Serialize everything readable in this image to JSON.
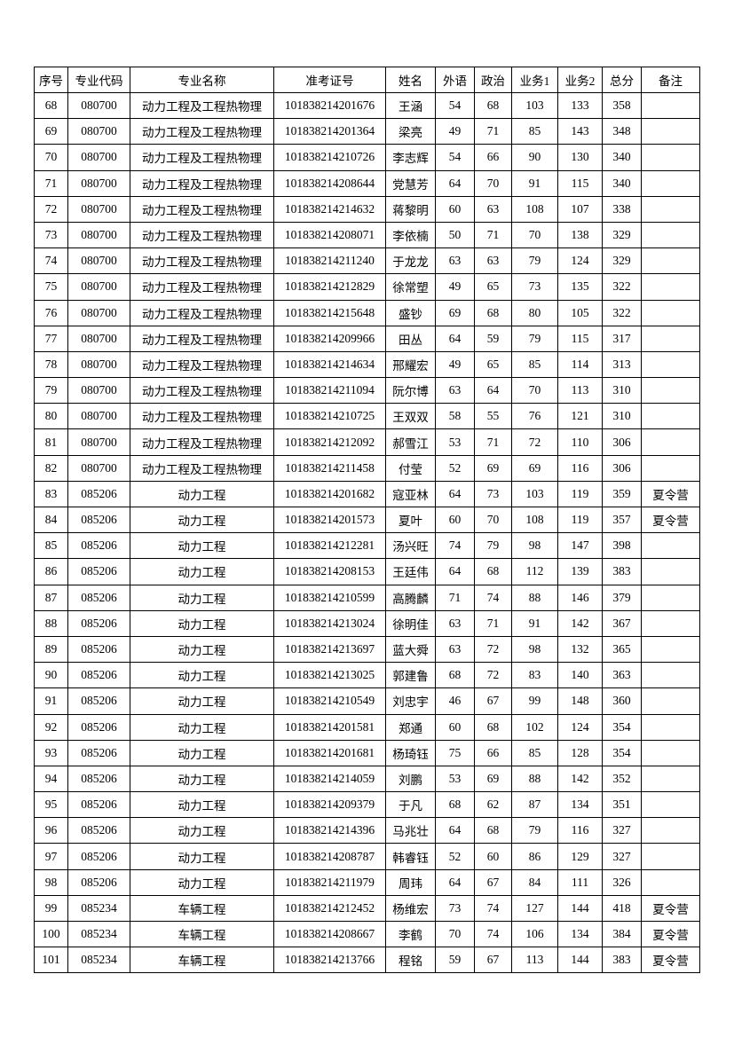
{
  "headers": [
    "序号",
    "专业代码",
    "专业名称",
    "准考证号",
    "姓名",
    "外语",
    "政治",
    "业务1",
    "业务2",
    "总分",
    "备注"
  ],
  "rows": [
    [
      "68",
      "080700",
      "动力工程及工程热物理",
      "101838214201676",
      "王涵",
      "54",
      "68",
      "103",
      "133",
      "358",
      ""
    ],
    [
      "69",
      "080700",
      "动力工程及工程热物理",
      "101838214201364",
      "梁亮",
      "49",
      "71",
      "85",
      "143",
      "348",
      ""
    ],
    [
      "70",
      "080700",
      "动力工程及工程热物理",
      "101838214210726",
      "李志辉",
      "54",
      "66",
      "90",
      "130",
      "340",
      ""
    ],
    [
      "71",
      "080700",
      "动力工程及工程热物理",
      "101838214208644",
      "党慧芳",
      "64",
      "70",
      "91",
      "115",
      "340",
      ""
    ],
    [
      "72",
      "080700",
      "动力工程及工程热物理",
      "101838214214632",
      "蒋黎明",
      "60",
      "63",
      "108",
      "107",
      "338",
      ""
    ],
    [
      "73",
      "080700",
      "动力工程及工程热物理",
      "101838214208071",
      "李依楠",
      "50",
      "71",
      "70",
      "138",
      "329",
      ""
    ],
    [
      "74",
      "080700",
      "动力工程及工程热物理",
      "101838214211240",
      "于龙龙",
      "63",
      "63",
      "79",
      "124",
      "329",
      ""
    ],
    [
      "75",
      "080700",
      "动力工程及工程热物理",
      "101838214212829",
      "徐常塑",
      "49",
      "65",
      "73",
      "135",
      "322",
      ""
    ],
    [
      "76",
      "080700",
      "动力工程及工程热物理",
      "101838214215648",
      "盛钞",
      "69",
      "68",
      "80",
      "105",
      "322",
      ""
    ],
    [
      "77",
      "080700",
      "动力工程及工程热物理",
      "101838214209966",
      "田丛",
      "64",
      "59",
      "79",
      "115",
      "317",
      ""
    ],
    [
      "78",
      "080700",
      "动力工程及工程热物理",
      "101838214214634",
      "邢耀宏",
      "49",
      "65",
      "85",
      "114",
      "313",
      ""
    ],
    [
      "79",
      "080700",
      "动力工程及工程热物理",
      "101838214211094",
      "阮尔博",
      "63",
      "64",
      "70",
      "113",
      "310",
      ""
    ],
    [
      "80",
      "080700",
      "动力工程及工程热物理",
      "101838214210725",
      "王双双",
      "58",
      "55",
      "76",
      "121",
      "310",
      ""
    ],
    [
      "81",
      "080700",
      "动力工程及工程热物理",
      "101838214212092",
      "郝雪江",
      "53",
      "71",
      "72",
      "110",
      "306",
      ""
    ],
    [
      "82",
      "080700",
      "动力工程及工程热物理",
      "101838214211458",
      "付莹",
      "52",
      "69",
      "69",
      "116",
      "306",
      ""
    ],
    [
      "83",
      "085206",
      "动力工程",
      "101838214201682",
      "寇亚林",
      "64",
      "73",
      "103",
      "119",
      "359",
      "夏令营"
    ],
    [
      "84",
      "085206",
      "动力工程",
      "101838214201573",
      "夏叶",
      "60",
      "70",
      "108",
      "119",
      "357",
      "夏令营"
    ],
    [
      "85",
      "085206",
      "动力工程",
      "101838214212281",
      "汤兴旺",
      "74",
      "79",
      "98",
      "147",
      "398",
      ""
    ],
    [
      "86",
      "085206",
      "动力工程",
      "101838214208153",
      "王廷伟",
      "64",
      "68",
      "112",
      "139",
      "383",
      ""
    ],
    [
      "87",
      "085206",
      "动力工程",
      "101838214210599",
      "高腾麟",
      "71",
      "74",
      "88",
      "146",
      "379",
      ""
    ],
    [
      "88",
      "085206",
      "动力工程",
      "101838214213024",
      "徐明佳",
      "63",
      "71",
      "91",
      "142",
      "367",
      ""
    ],
    [
      "89",
      "085206",
      "动力工程",
      "101838214213697",
      "蓝大舜",
      "63",
      "72",
      "98",
      "132",
      "365",
      ""
    ],
    [
      "90",
      "085206",
      "动力工程",
      "101838214213025",
      "郭建鲁",
      "68",
      "72",
      "83",
      "140",
      "363",
      ""
    ],
    [
      "91",
      "085206",
      "动力工程",
      "101838214210549",
      "刘忠宇",
      "46",
      "67",
      "99",
      "148",
      "360",
      ""
    ],
    [
      "92",
      "085206",
      "动力工程",
      "101838214201581",
      "郑通",
      "60",
      "68",
      "102",
      "124",
      "354",
      ""
    ],
    [
      "93",
      "085206",
      "动力工程",
      "101838214201681",
      "杨琦钰",
      "75",
      "66",
      "85",
      "128",
      "354",
      ""
    ],
    [
      "94",
      "085206",
      "动力工程",
      "101838214214059",
      "刘鹏",
      "53",
      "69",
      "88",
      "142",
      "352",
      ""
    ],
    [
      "95",
      "085206",
      "动力工程",
      "101838214209379",
      "于凡",
      "68",
      "62",
      "87",
      "134",
      "351",
      ""
    ],
    [
      "96",
      "085206",
      "动力工程",
      "101838214214396",
      "马兆壮",
      "64",
      "68",
      "79",
      "116",
      "327",
      ""
    ],
    [
      "97",
      "085206",
      "动力工程",
      "101838214208787",
      "韩睿钰",
      "52",
      "60",
      "86",
      "129",
      "327",
      ""
    ],
    [
      "98",
      "085206",
      "动力工程",
      "101838214211979",
      "周玮",
      "64",
      "67",
      "84",
      "111",
      "326",
      ""
    ],
    [
      "99",
      "085234",
      "车辆工程",
      "101838214212452",
      "杨维宏",
      "73",
      "74",
      "127",
      "144",
      "418",
      "夏令营"
    ],
    [
      "100",
      "085234",
      "车辆工程",
      "101838214208667",
      "李鹤",
      "70",
      "74",
      "106",
      "134",
      "384",
      "夏令营"
    ],
    [
      "101",
      "085234",
      "车辆工程",
      "101838214213766",
      "程铭",
      "59",
      "67",
      "113",
      "144",
      "383",
      "夏令营"
    ]
  ]
}
